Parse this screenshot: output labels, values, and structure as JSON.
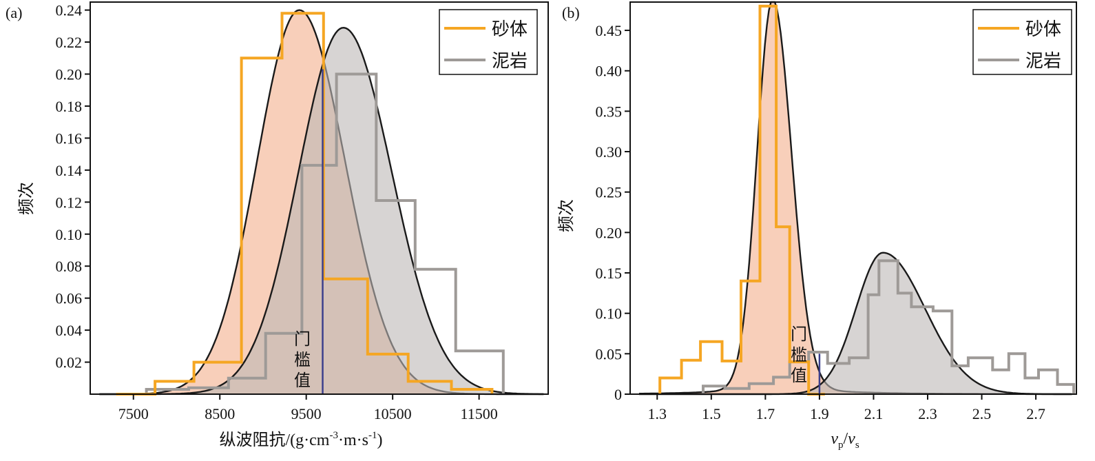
{
  "chart_data": [
    {
      "type": "histogram_with_density",
      "panel_label": "(a)",
      "ylabel": "频次",
      "xlabel": {
        "prefix": "纵波阻抗/(g·cm",
        "sup1": "-3",
        "middle": "·m·s",
        "sup2": "-1",
        "suffix": ")"
      },
      "xlim": [
        7000,
        12300
      ],
      "ylim": [
        0,
        0.245
      ],
      "xticks": [
        7500,
        8500,
        9500,
        10500,
        11500
      ],
      "xtick_labels": [
        "7500",
        "8500",
        "9500",
        "10500",
        "11500"
      ],
      "yticks": [
        0.02,
        0.04,
        0.06,
        0.08,
        0.1,
        0.12,
        0.14,
        0.16,
        0.18,
        0.2,
        0.22,
        0.24
      ],
      "ytick_labels": [
        "0.02",
        "0.04",
        "0.06",
        "0.08",
        "0.10",
        "0.12",
        "0.14",
        "0.16",
        "0.18",
        "0.20",
        "0.22",
        "0.24"
      ],
      "series": [
        {
          "name": "砂体",
          "color": "#f5a623",
          "fill": "#f4b18f",
          "bin_edges": [
            7300,
            7750,
            8200,
            8750,
            9220,
            9700,
            10210,
            10680,
            11180,
            11650
          ],
          "values": [
            0.0,
            0.008,
            0.02,
            0.21,
            0.238,
            0.072,
            0.025,
            0.008,
            0.003
          ],
          "density": {
            "mean": 9420,
            "sd_left": 490,
            "sd_right": 530,
            "peak": 0.24
          }
        },
        {
          "name": "泥岩",
          "color": "#9e9a97",
          "fill": "#bdb8b5",
          "bin_edges": [
            7650,
            8140,
            8600,
            9030,
            9450,
            9850,
            10310,
            10760,
            11230,
            11780
          ],
          "values": [
            0.003,
            0.004,
            0.01,
            0.038,
            0.143,
            0.2,
            0.121,
            0.078,
            0.027
          ],
          "density": {
            "mean": 9930,
            "sd_left": 520,
            "sd_right": 560,
            "peak": 0.229
          }
        }
      ],
      "threshold": {
        "x": 9690,
        "label": "门槛值",
        "color": "#3b3f8c"
      },
      "legend": {
        "position": "top-right",
        "entries": [
          "砂体",
          "泥岩"
        ]
      }
    },
    {
      "type": "histogram_with_density",
      "panel_label": "(b)",
      "ylabel": "频次",
      "xlabel": {
        "v1": "v",
        "s1": "p",
        "slash": "/",
        "v2": "v",
        "s2": "s"
      },
      "xlim": [
        1.2,
        2.85
      ],
      "ylim": [
        0,
        0.485
      ],
      "xticks": [
        1.3,
        1.5,
        1.7,
        1.9,
        2.1,
        2.3,
        2.5,
        2.7
      ],
      "xtick_labels": [
        "1.3",
        "1.5",
        "1.7",
        "1.9",
        "2.1",
        "2.3",
        "2.5",
        "2.7"
      ],
      "yticks": [
        0,
        0.05,
        0.1,
        0.15,
        0.2,
        0.25,
        0.3,
        0.35,
        0.4,
        0.45
      ],
      "ytick_labels": [
        "0",
        "0.05",
        "0.10",
        "0.15",
        "0.20",
        "0.25",
        "0.30",
        "0.35",
        "0.40",
        "0.45"
      ],
      "series": [
        {
          "name": "砂体",
          "color": "#f5a623",
          "fill": "#f4b18f",
          "bin_edges": [
            1.31,
            1.39,
            1.46,
            1.54,
            1.61,
            1.68,
            1.74,
            1.79,
            1.86,
            1.92
          ],
          "values": [
            0.02,
            0.042,
            0.065,
            0.041,
            0.14,
            0.48,
            0.207,
            0.04,
            0.0
          ],
          "density": {
            "mean": 1.727,
            "sd_left": 0.058,
            "sd_right": 0.07,
            "peak": 0.478,
            "tail": 0.011
          }
        },
        {
          "name": "泥岩",
          "color": "#9e9a97",
          "fill": "#bdb8b5",
          "bin_edges": [
            1.47,
            1.55,
            1.64,
            1.73,
            1.79,
            1.86,
            1.93,
            2.01,
            2.08,
            2.12,
            2.19,
            2.24,
            2.32,
            2.39,
            2.45,
            2.54,
            2.6,
            2.66,
            2.71,
            2.78,
            2.84
          ],
          "values": [
            0.01,
            0.007,
            0.013,
            0.021,
            0.04,
            0.052,
            0.038,
            0.045,
            0.123,
            0.165,
            0.125,
            0.108,
            0.103,
            0.035,
            0.045,
            0.03,
            0.05,
            0.02,
            0.03,
            0.012
          ],
          "density": {
            "mean": 2.135,
            "sd_left": 0.1,
            "sd_right": 0.155,
            "peak": 0.175
          }
        }
      ],
      "threshold": {
        "x": 1.9,
        "label": "门槛值",
        "color": "#3b3f8c"
      },
      "legend": {
        "position": "top-right",
        "entries": [
          "砂体",
          "泥岩"
        ]
      }
    }
  ]
}
